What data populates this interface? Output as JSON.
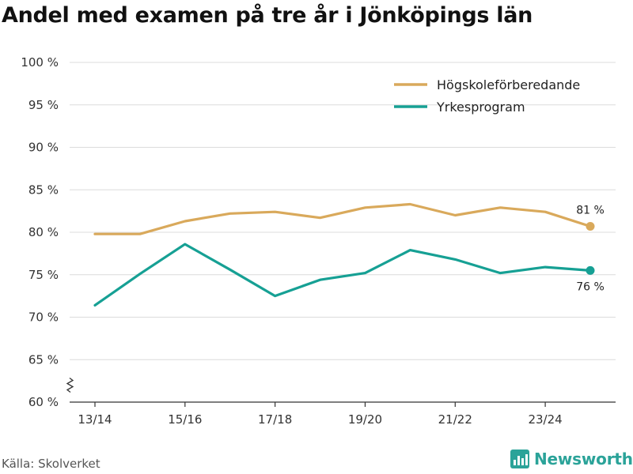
{
  "title": "Andel med examen på tre år i Jönköpings län",
  "source": "Källa: Skolverket",
  "brand": "Newsworthy",
  "chart_data": {
    "type": "line",
    "title": "Andel med examen på tre år i Jönköpings län",
    "xlabel": "",
    "ylabel": "",
    "ylim": [
      60,
      100
    ],
    "y_ticks": [
      60,
      65,
      70,
      75,
      80,
      85,
      90,
      95,
      100
    ],
    "y_tick_labels": [
      "60 %",
      "65 %",
      "70 %",
      "75 %",
      "80 %",
      "85 %",
      "90 %",
      "95 %",
      "100 %"
    ],
    "x": [
      "13/14",
      "14/15",
      "15/16",
      "16/17",
      "17/18",
      "18/19",
      "19/20",
      "20/21",
      "21/22",
      "22/23",
      "23/24",
      "24/25"
    ],
    "x_tick_labels": [
      "13/14",
      "15/16",
      "17/18",
      "19/20",
      "21/22",
      "23/24"
    ],
    "y_axis_break": true,
    "grid": true,
    "legend_position": "top-right",
    "series": [
      {
        "name": "Högskoleförberedande",
        "color": "#d9a95b",
        "values": [
          79.8,
          79.8,
          81.3,
          82.2,
          82.4,
          81.7,
          82.9,
          83.3,
          82.0,
          82.9,
          82.4,
          80.7
        ],
        "end_label": "81 %"
      },
      {
        "name": "Yrkesprogram",
        "color": "#16a094",
        "values": [
          71.4,
          75.1,
          78.6,
          75.6,
          72.5,
          74.4,
          75.2,
          77.9,
          76.8,
          75.2,
          75.9,
          75.5
        ],
        "end_label": "76 %"
      }
    ]
  }
}
